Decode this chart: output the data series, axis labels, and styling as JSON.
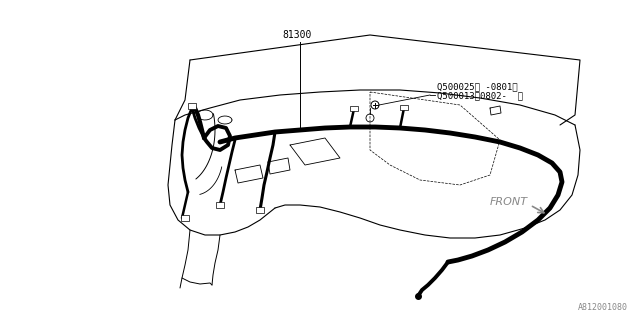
{
  "bg_color": "#ffffff",
  "line_color": "#000000",
  "wire_color": "#000000",
  "gray_color": "#888888",
  "label_81300": "81300",
  "label_q1": "Q500025（ -0801）",
  "label_q2": "Q500013（0802-  ）",
  "label_front": "FRONT",
  "label_part_id": "A812001080",
  "fig_width": 6.4,
  "fig_height": 3.2,
  "dpi": 100
}
